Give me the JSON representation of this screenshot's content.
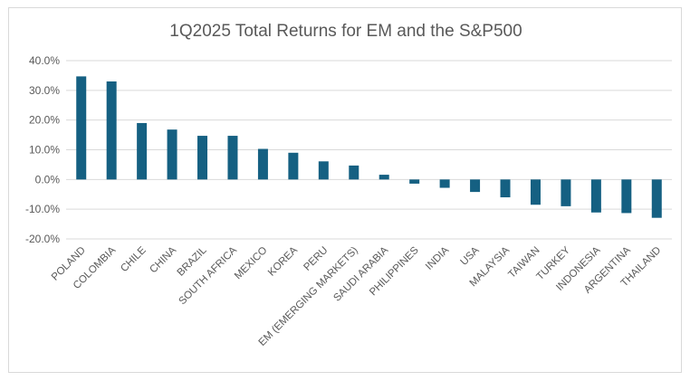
{
  "chart_data": {
    "type": "bar",
    "title": "1Q2025 Total Returns for EM and the S&P500",
    "xlabel": "",
    "ylabel": "",
    "categories": [
      "POLAND",
      "COLOMBIA",
      "CHILE",
      "CHINA",
      "BRAZIL",
      "SOUTH AFRICA",
      "MEXICO",
      "KOREA",
      "PERU",
      "EM (EMERGING MARKETS)",
      "SAUDI ARABIA",
      "PHILIPPINES",
      "INDIA",
      "USA",
      "MALAYSIA",
      "TAIWAN",
      "TURKEY",
      "INDONESIA",
      "ARGENTINA",
      "THAILAND"
    ],
    "values": [
      34.7,
      33.0,
      19.0,
      16.8,
      14.7,
      14.7,
      10.3,
      9.0,
      6.1,
      4.7,
      1.6,
      -1.4,
      -2.8,
      -4.2,
      -6.0,
      -8.5,
      -9.0,
      -11.1,
      -11.3,
      -12.9
    ],
    "ylim": [
      -20,
      40
    ],
    "yticks": [
      40,
      30,
      20,
      10,
      0,
      -10,
      -20
    ],
    "ytick_labels": [
      "40.0%",
      "30.0%",
      "20.0%",
      "10.0%",
      "0.0%",
      "-10.0%",
      "-20.0%"
    ],
    "grid": true,
    "legend": "none",
    "bar_color": "#156082"
  }
}
